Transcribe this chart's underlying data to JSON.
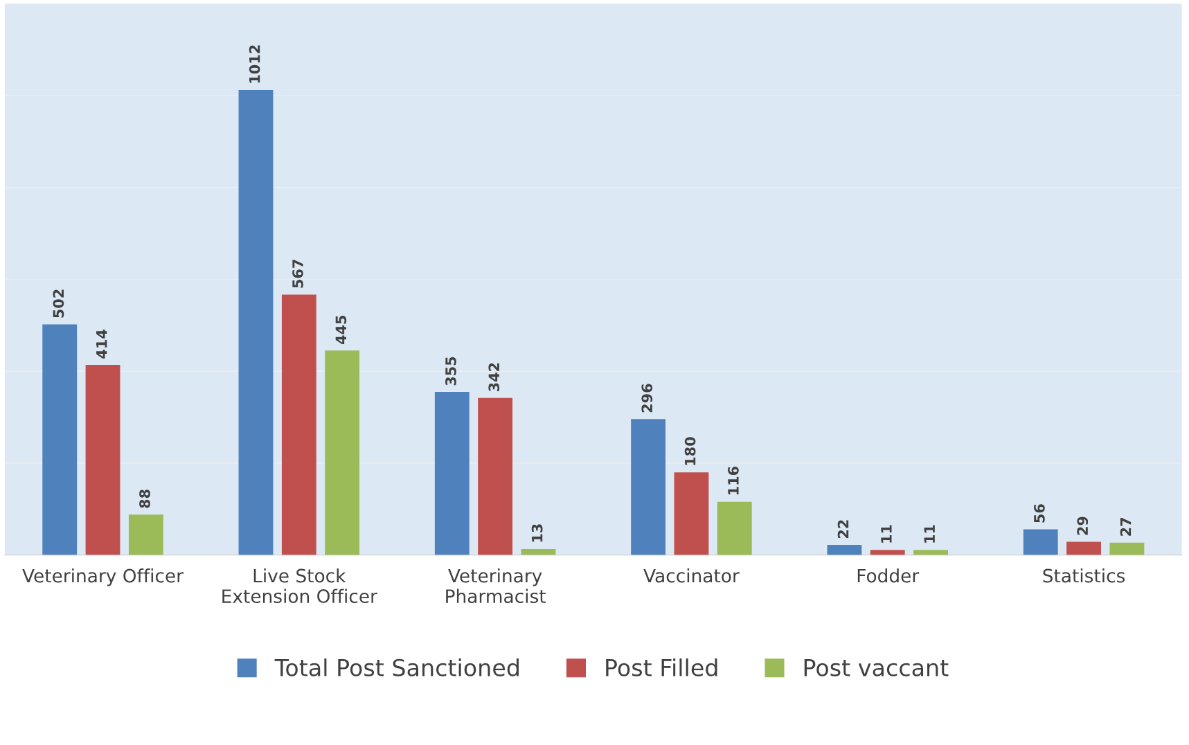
{
  "chart_data": {
    "type": "bar",
    "categories": [
      "Veterinary Officer",
      "Live Stock\nExtension Officer",
      "Veterinary\nPharmacist",
      "Vaccinator",
      "Fodder",
      "Statistics"
    ],
    "series": [
      {
        "name": "Total Post Sanctioned",
        "color": "#4f81bd",
        "values": [
          502,
          1012,
          355,
          296,
          22,
          56
        ]
      },
      {
        "name": "Post Filled",
        "color": "#c0504d",
        "values": [
          414,
          567,
          342,
          180,
          11,
          29
        ]
      },
      {
        "name": "Post vaccant",
        "color": "#9bbb59",
        "values": [
          88,
          445,
          13,
          116,
          11,
          27
        ]
      }
    ],
    "ylim": [
      0,
      1200
    ],
    "yticks": [
      {
        "value": 0,
        "label": null
      },
      {
        "value": 200,
        "label": null
      },
      {
        "value": 400,
        "label": null
      },
      {
        "value": 600,
        "label": null
      },
      {
        "value": 800,
        "label": null
      },
      {
        "value": 1000,
        "label": null
      },
      {
        "value": 1200,
        "label": null
      }
    ],
    "tick_labels": "x",
    "grid": "y",
    "legend": "bottom",
    "data_labels": true
  }
}
